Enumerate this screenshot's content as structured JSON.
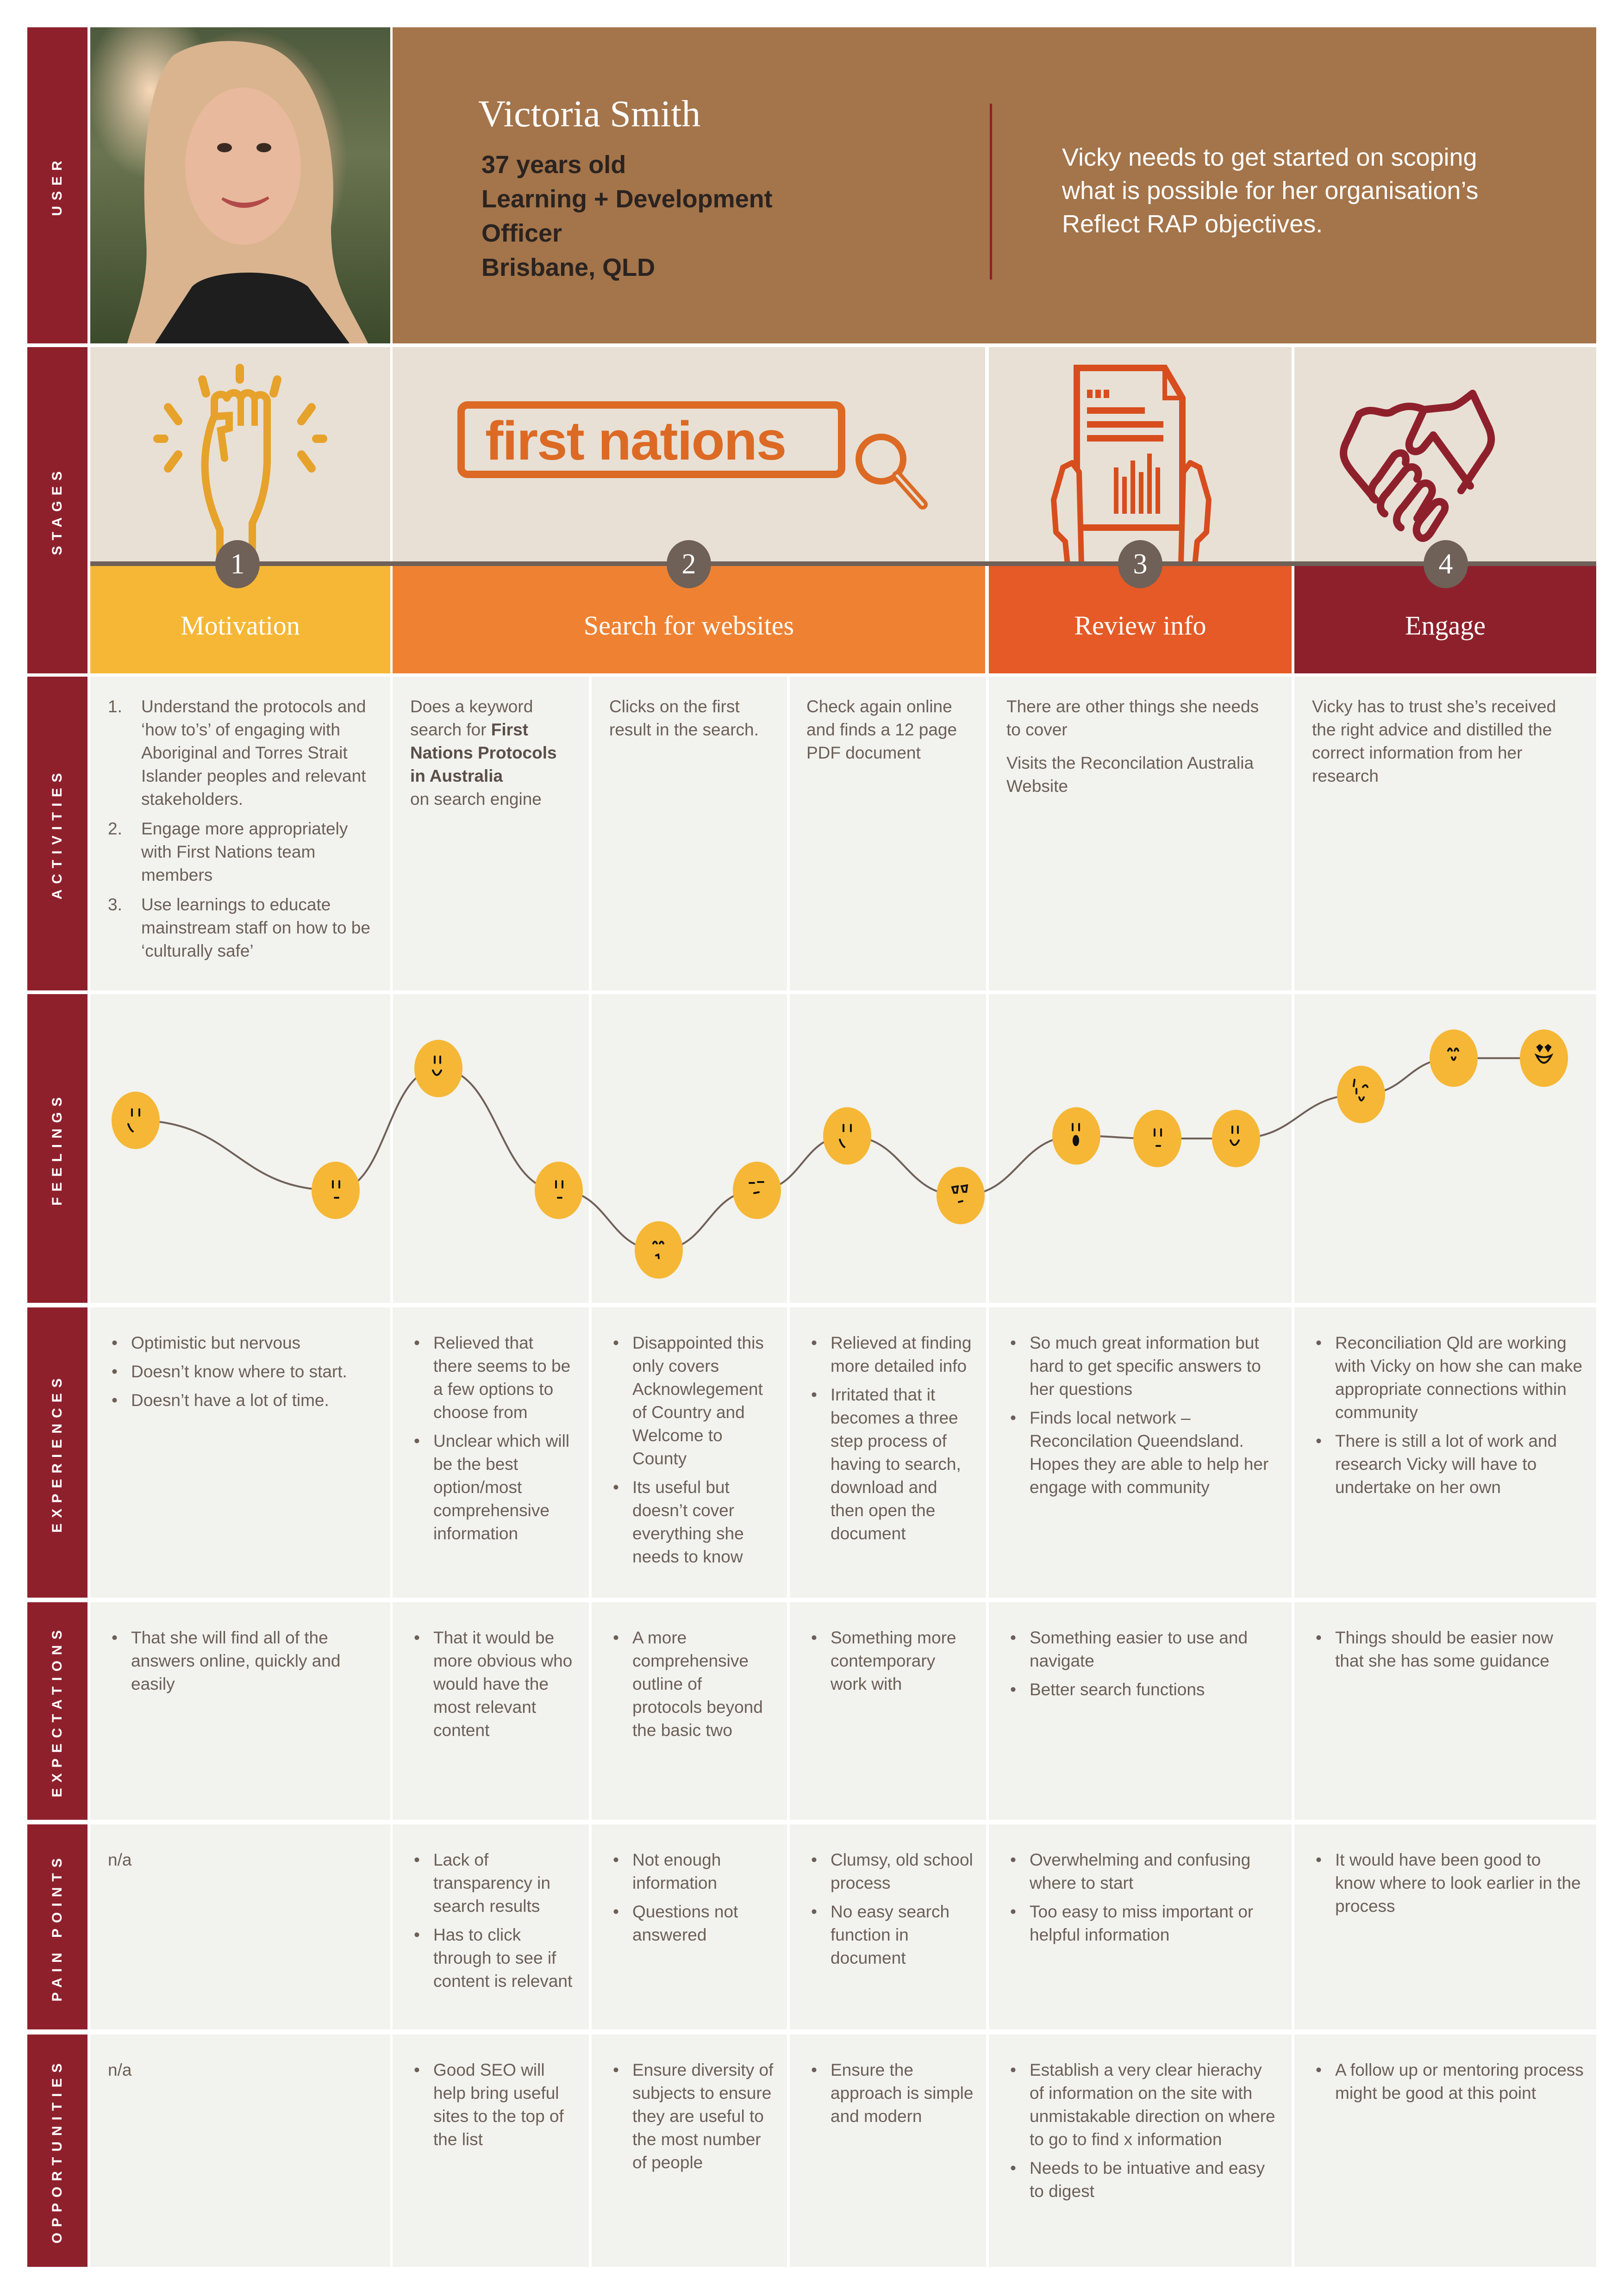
{
  "row_labels": {
    "user": "USER",
    "stages": "STAGES",
    "activities": "ACTIVITIES",
    "feelings": "FEELINGS",
    "experiences": "EXPERIENCES",
    "expectations": "EXPECTATIONS",
    "pain_points": "PAIN POINTS",
    "opportunities": "OPPORTUNITIES"
  },
  "user": {
    "name": "Victoria Smith",
    "age": "37 years old",
    "role_line1": "Learning + Development",
    "role_line2": "Officer",
    "location": "Brisbane, QLD",
    "goal": "Vicky needs to get started on scoping what is possible for her organisation’s Reflect RAP objectives."
  },
  "stages": [
    {
      "number": "1",
      "label": "Motivation",
      "icon": "raised-fist-icon",
      "color": "#f5b735"
    },
    {
      "number": "2",
      "label": "Search for websites",
      "icon": "search-bar-icon",
      "search_text": "first nations",
      "color": "#ef8232"
    },
    {
      "number": "3",
      "label": "Review info",
      "icon": "document-in-hands-icon",
      "color": "#e55a26"
    },
    {
      "number": "4",
      "label": "Engage",
      "icon": "handshake-icon",
      "color": "#8e202c"
    }
  ],
  "activities": {
    "motivation": [
      {
        "num": "1.",
        "text": "Understand the protocols and ‘how to’s’ of engaging with Aboriginal and Torres Strait Islander peoples and relevant stakeholders."
      },
      {
        "num": "2.",
        "text": "Engage more appropriately with First Nations team members"
      },
      {
        "num": "3.",
        "text": "Use learnings to educate mainstream staff on how to be ‘culturally safe’"
      }
    ],
    "search_a": {
      "pre": "Does a keyword search for ",
      "bold": "First Nations Protocols in Australia",
      "post": "on search engine"
    },
    "search_b": "Clicks on the first result in the search.",
    "search_c": "Check again online and finds a 12 page PDF document",
    "review": [
      "There are other things she needs to cover",
      "Visits the Reconcilation Australia Website"
    ],
    "engage": "Vicky has to trust she’s received the right advice and distilled the correct information from her research"
  },
  "feelings": [
    {
      "face": "content",
      "level": 0.62
    },
    {
      "face": "neutral",
      "level": 0.35
    },
    {
      "face": "happy",
      "level": 0.82
    },
    {
      "face": "neutral",
      "level": 0.35
    },
    {
      "face": "sad",
      "level": 0.12
    },
    {
      "face": "annoyed",
      "level": 0.35
    },
    {
      "face": "content",
      "level": 0.56
    },
    {
      "face": "skeptical",
      "level": 0.33
    },
    {
      "face": "surprised",
      "level": 0.56
    },
    {
      "face": "neutral",
      "level": 0.55
    },
    {
      "face": "happy",
      "level": 0.55
    },
    {
      "face": "wink",
      "level": 0.72
    },
    {
      "face": "pleased",
      "level": 0.86
    },
    {
      "face": "love",
      "level": 0.86
    }
  ],
  "experiences": [
    [
      "Optimistic but nervous",
      "Doesn’t know where to start.",
      "Doesn’t have a lot of time."
    ],
    [
      "Relieved that there seems to be a few options to choose from",
      "Unclear which will be the best option/most comprehensive information"
    ],
    [
      "Disappointed this only covers Acknowlegement of Country and Welcome to County",
      "Its useful but doesn’t cover everything she needs to know"
    ],
    [
      "Relieved at finding more detailed info",
      "Irritated that it becomes a three step process of having to search, download and then open the document"
    ],
    [
      "So much great information but hard to get specific answers to her questions",
      "Finds local network – Reconcilation Queendsland. Hopes they are able to help her engage with community"
    ],
    [
      "Reconciliation Qld are working with Vicky on how she can make appropriate connections within community",
      "There is still a lot of work and research Vicky will have to undertake on her own"
    ]
  ],
  "expectations": [
    [
      "That she will find all of the answers online, quickly and easily"
    ],
    [
      "That it would be more obvious who would have the most relevant content"
    ],
    [
      "A more comprehensive outline of protocols beyond the basic two"
    ],
    [
      "Something more contemporary work with"
    ],
    [
      "Something easier to use and navigate",
      "Better search functions"
    ],
    [
      "Things should be easier now that she has some guidance"
    ]
  ],
  "pain_points": {
    "first": "n/a",
    "items": [
      [
        "Lack of transparency in search results",
        "Has to click through to see if content is relevant"
      ],
      [
        "Not enough information",
        "Questions not answered"
      ],
      [
        "Clumsy, old school process",
        "No easy search function in document"
      ],
      [
        "Overwhelming and confusing where to start",
        "Too easy to miss important or helpful information"
      ],
      [
        "It would have been good to know where to look earlier in the process"
      ]
    ]
  },
  "opportunities": {
    "first": "n/a",
    "items": [
      [
        "Good SEO will help bring useful sites to the top of the list"
      ],
      [
        "Ensure diversity of subjects to ensure they are useful to the most number of people"
      ],
      [
        "Ensure the approach is simple and modern"
      ],
      [
        "Establish a very clear hierachy of information on the site with unmistakable direction on where to go to find x information",
        "Needs to be intuative and easy to digest"
      ],
      [
        "A follow up or mentoring process might be good at this point"
      ]
    ]
  },
  "colors": {
    "sidebar": "#8e202c",
    "header_bg": "#a4744a",
    "cell_bg": "#f2f2ee",
    "text": "#6b5f58",
    "face": "#f5b735"
  }
}
